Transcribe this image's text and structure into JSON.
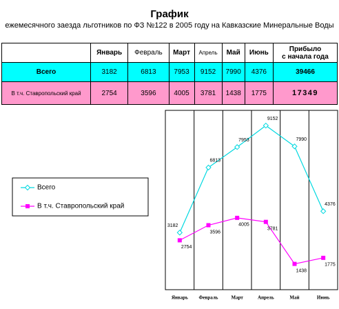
{
  "title": "График",
  "subtitle": "ежемесячного заезда льготников по ФЗ №122 в 2005 году на Кавказские Минеральные Воды",
  "table": {
    "header": [
      "Январь",
      "Февраль",
      "Март",
      "Апрель",
      "Май",
      "Июнь"
    ],
    "header_total": [
      "Прибыло",
      "с начала года"
    ],
    "rows": [
      {
        "label": "Всего",
        "cells": [
          3182,
          6813,
          7953,
          9152,
          7990,
          4376
        ],
        "total": 39466
      },
      {
        "label": "В т.ч. Ставропольский край",
        "cells": [
          2754,
          3596,
          4005,
          3781,
          1438,
          1775
        ],
        "total": 17349
      }
    ]
  },
  "chart_data": {
    "type": "line",
    "categories": [
      "Январь",
      "Февраль",
      "Март",
      "Апрель",
      "Май",
      "Июнь"
    ],
    "series": [
      {
        "name": "Всего",
        "color": "#00d8e0",
        "values": [
          3182,
          6813,
          7953,
          9152,
          7990,
          4376
        ]
      },
      {
        "name": "В т.ч. Ставропольский край",
        "color": "#ff00ff",
        "values": [
          2754,
          3596,
          4005,
          3781,
          1438,
          1775
        ]
      }
    ],
    "ylim": [
      0,
      10000
    ]
  }
}
